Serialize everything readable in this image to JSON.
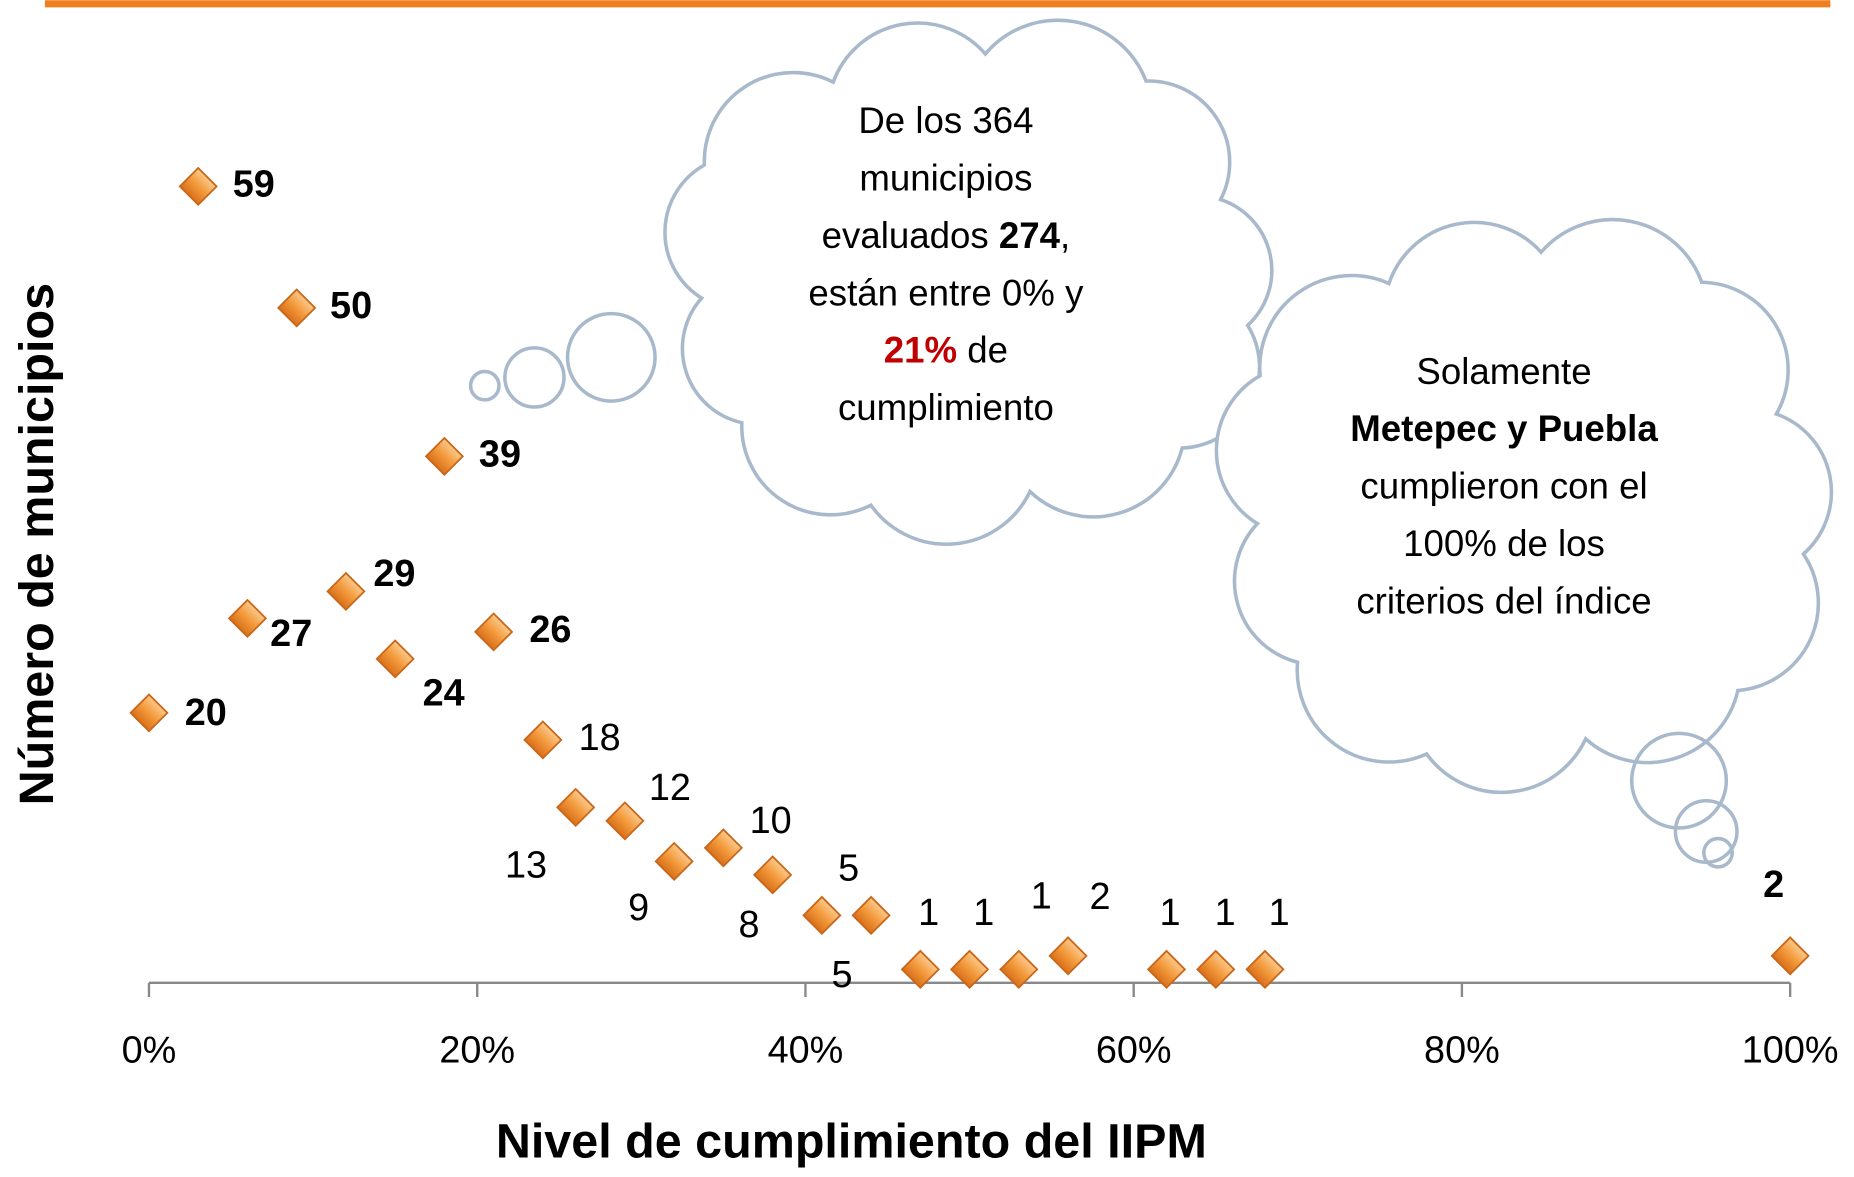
{
  "chart_data": {
    "type": "scatter",
    "x_label": "Nivel de cumplimiento del IIPM",
    "y_label": "Número de municipios",
    "x": [
      0,
      3,
      6,
      9,
      12,
      15,
      18,
      21,
      24,
      26,
      29,
      32,
      35,
      38,
      41,
      44,
      47,
      50,
      53,
      56,
      62,
      65,
      68,
      100
    ],
    "values": [
      20,
      59,
      27,
      50,
      29,
      24,
      39,
      26,
      18,
      13,
      12,
      9,
      10,
      8,
      5,
      5,
      1,
      1,
      1,
      2,
      1,
      1,
      1,
      2
    ],
    "color": "#f39a3c",
    "xlim": [
      0,
      100
    ],
    "ylim": [
      0,
      72
    ],
    "xticks": [
      {
        "value": 0,
        "label": "0%"
      },
      {
        "value": 20,
        "label": "20%"
      },
      {
        "value": 40,
        "label": "40%"
      },
      {
        "value": 60,
        "label": "60%"
      },
      {
        "value": 80,
        "label": "80%"
      },
      {
        "value": 100,
        "label": "100%"
      }
    ],
    "annotations": [
      {
        "lines": [
          [
            "De los 364"
          ],
          [
            "municipios"
          ],
          [
            "evaluados ",
            "274",
            ","
          ],
          [
            "están entre 0% y"
          ],
          [
            "21%",
            " de"
          ],
          [
            "cumplimiento"
          ]
        ]
      },
      {
        "lines": [
          [
            "Solamente"
          ],
          [
            "Metepec y Puebla"
          ],
          [
            "cumplieron con el"
          ],
          [
            "100% de los"
          ],
          [
            "criterios del índice"
          ]
        ]
      }
    ]
  }
}
